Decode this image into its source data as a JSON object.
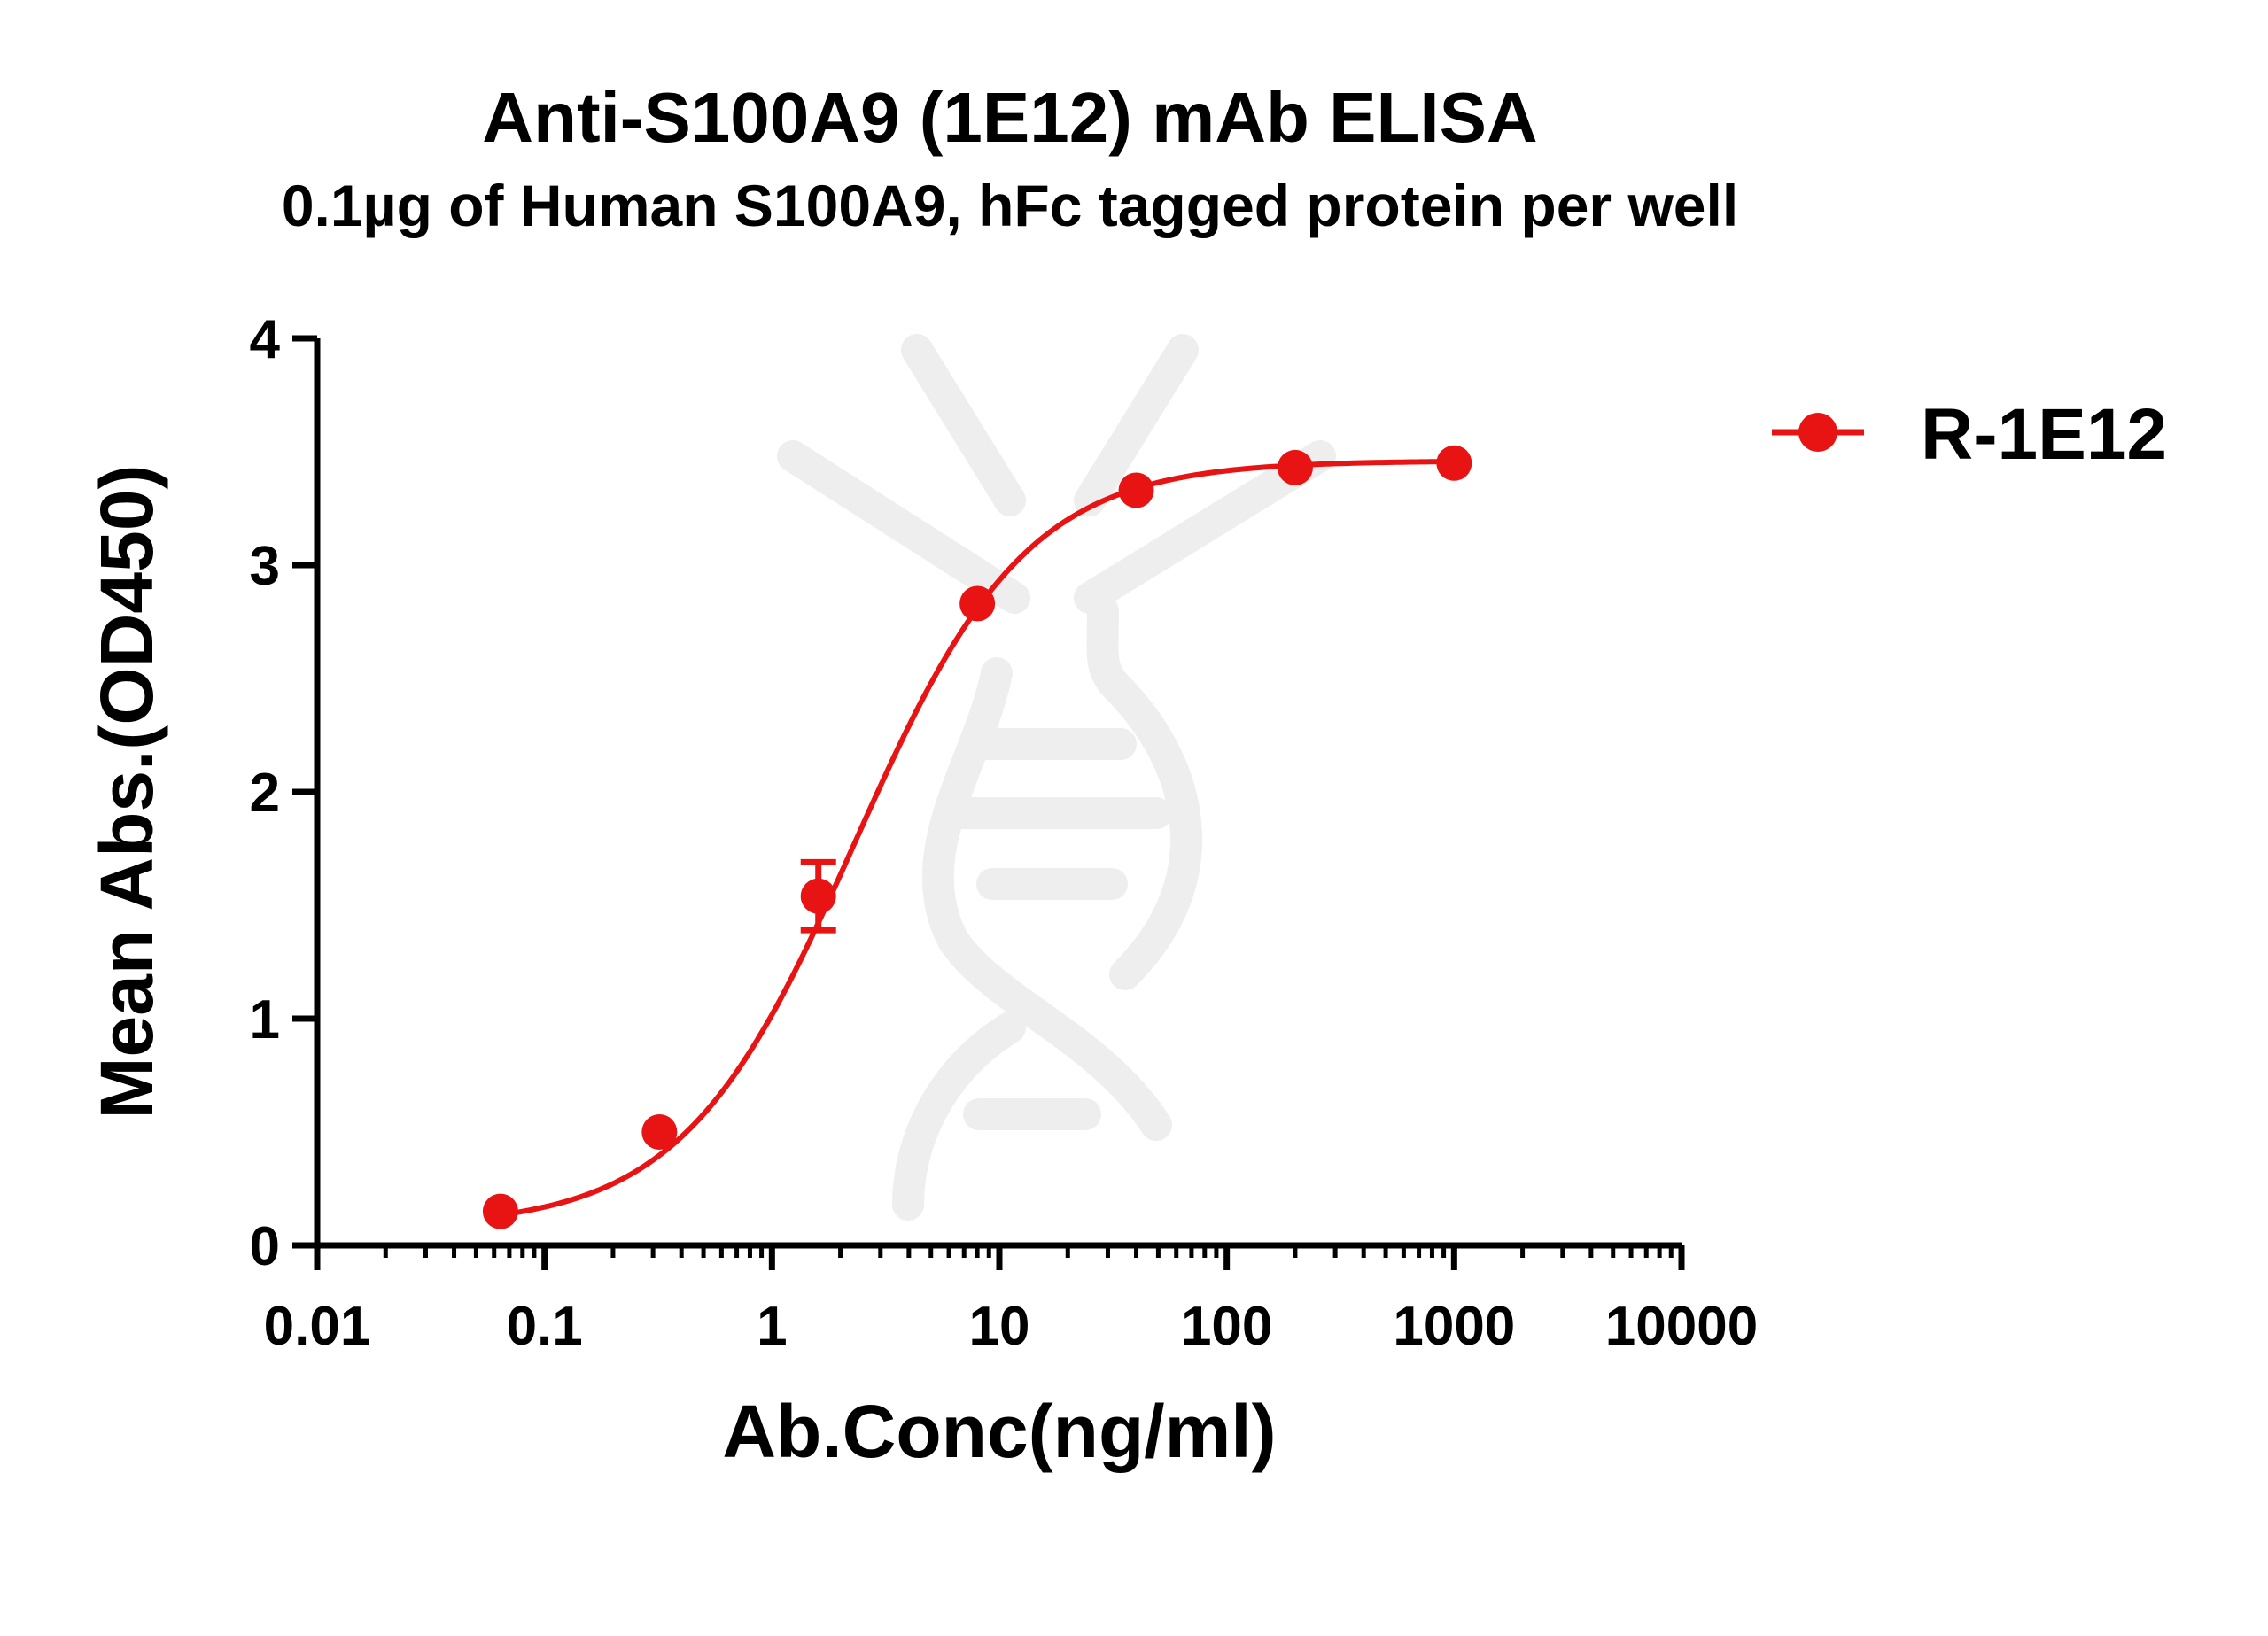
{
  "chart_data": {
    "type": "line",
    "title": "Anti-S100A9 (1E12) mAb ELISA",
    "subtitle": "0.1µg of Human S100A9, hFc tagged protein per well",
    "xlabel": "Ab.Conc(ng/ml)",
    "ylabel": "Mean Abs.(OD450)",
    "xscale": "log",
    "xlim": [
      0.01,
      10000
    ],
    "ylim": [
      0,
      4
    ],
    "x_ticks": [
      "0.01",
      "0.1",
      "1",
      "10",
      "100",
      "1000",
      "10000"
    ],
    "x_tick_values": [
      0.01,
      0.1,
      1,
      10,
      100,
      1000,
      10000
    ],
    "y_ticks": [
      "0",
      "1",
      "2",
      "3",
      "4"
    ],
    "y_tick_values": [
      0,
      1,
      2,
      3,
      4
    ],
    "grid": false,
    "legend_position": "top-right",
    "series": [
      {
        "name": "R-1E12",
        "color": "#e81414",
        "marker": "circle",
        "x": [
          0.064,
          0.32,
          1.6,
          8,
          40,
          200,
          1000
        ],
        "y": [
          0.15,
          0.5,
          1.54,
          2.83,
          3.33,
          3.43,
          3.45
        ],
        "error": [
          0,
          0,
          0.15,
          0,
          0,
          0,
          0
        ],
        "fit": {
          "model": "4PL",
          "bottom": 0.08,
          "top": 3.46,
          "ec50": 2.3,
          "hill": 1.15
        }
      }
    ]
  }
}
